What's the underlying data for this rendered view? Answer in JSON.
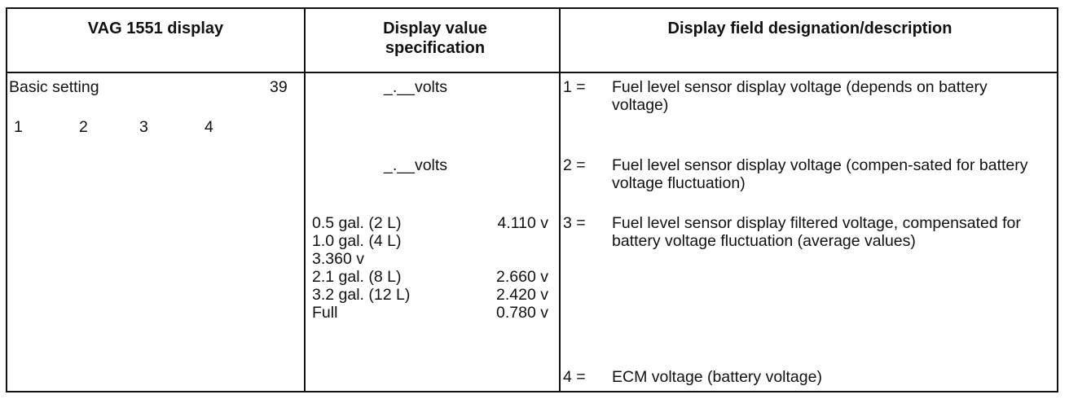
{
  "headers": {
    "col1": "VAG 1551 display",
    "col2": "Display value specification",
    "col3": "Display field designation/description"
  },
  "left": {
    "title": "Basic setting",
    "group": "39",
    "fields": [
      "1",
      "2",
      "3",
      "4"
    ]
  },
  "spec": {
    "volts1": "_.__volts",
    "volts2": "_.__volts",
    "rows": [
      {
        "qty": "0.5 gal. (2 L)",
        "v": "4.110 v"
      },
      {
        "qty": "1.0 gal. (4 L)",
        "v": ""
      },
      {
        "qty": "3.360 v",
        "v": ""
      },
      {
        "qty": "2.1 gal. (8 L)",
        "v": "2.660 v"
      },
      {
        "qty": "3.2 gal. (12 L)",
        "v": "2.420 v"
      },
      {
        "qty": "Full",
        "v": "0.780 v"
      }
    ]
  },
  "descriptions": [
    {
      "num": "1 =",
      "text": "Fuel level sensor display voltage (depends on battery voltage)"
    },
    {
      "num": "2 =",
      "text": "Fuel level sensor display voltage (compen-sated for battery voltage fluctuation)"
    },
    {
      "num": "3 =",
      "text": "Fuel level sensor display filtered voltage, compensated for battery voltage fluctuation (average values)"
    },
    {
      "num": "4 =",
      "text": "ECM voltage (battery voltage)"
    }
  ]
}
